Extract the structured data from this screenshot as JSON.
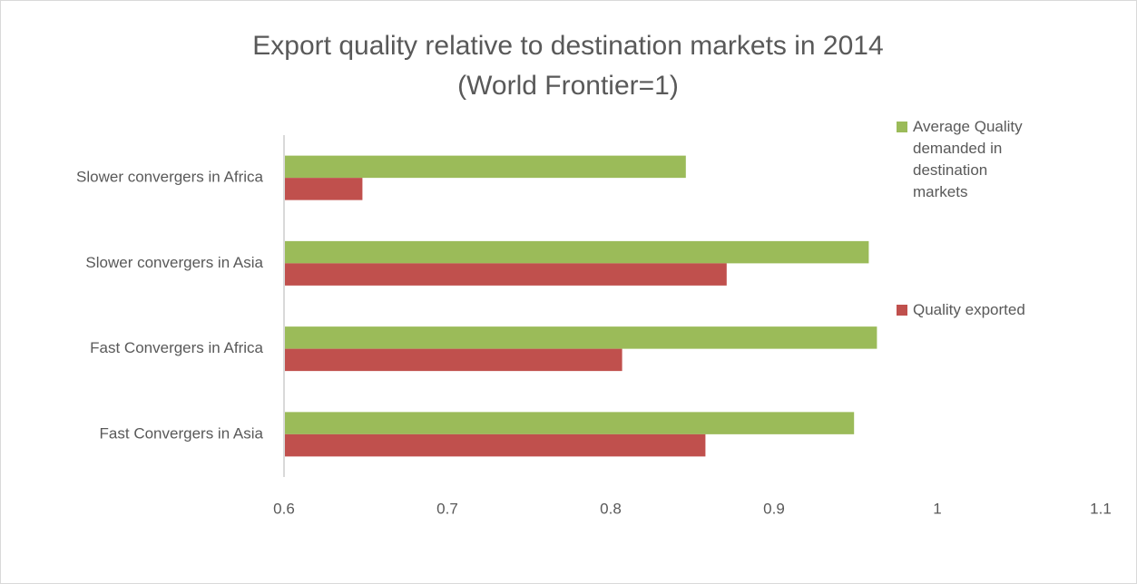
{
  "chart_data": {
    "type": "hbar",
    "title": "Export quality relative to destination markets in 2014",
    "subtitle": "(World Frontier=1)",
    "categories": [
      "Slower convergers in Africa",
      "Slower convergers in Asia",
      "Fast Convergers in Africa",
      "Fast Convergers in Asia"
    ],
    "series": [
      {
        "name": "Average Quality demanded in destination markets",
        "color": "#9bbb59",
        "values": [
          0.846,
          0.958,
          0.963,
          0.949
        ]
      },
      {
        "name": "Quality exported",
        "color": "#c0504d",
        "values": [
          0.648,
          0.871,
          0.807,
          0.858
        ]
      }
    ],
    "xlim": [
      0.6,
      1.1
    ],
    "xticks": [
      0.6,
      0.7,
      0.8,
      0.9,
      1,
      1.1
    ],
    "legend": "right"
  }
}
